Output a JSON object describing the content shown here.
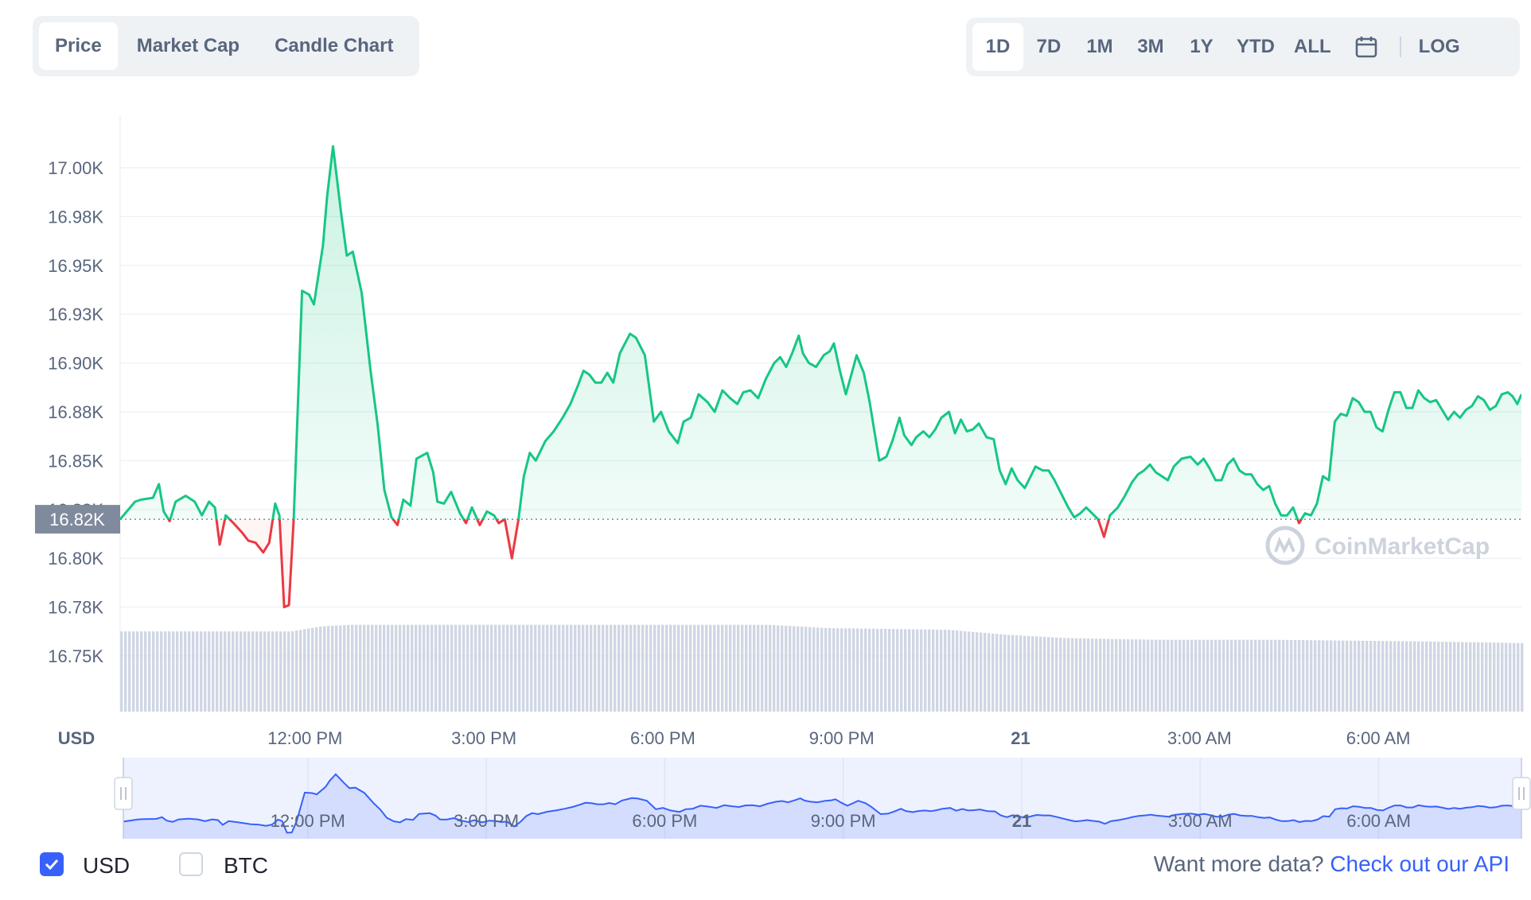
{
  "tabs": [
    {
      "label": "Price",
      "active": true
    },
    {
      "label": "Market Cap",
      "active": false
    },
    {
      "label": "Candle Chart",
      "active": false
    }
  ],
  "ranges": [
    {
      "label": "1D",
      "active": true
    },
    {
      "label": "7D",
      "active": false
    },
    {
      "label": "1M",
      "active": false
    },
    {
      "label": "3M",
      "active": false
    },
    {
      "label": "1Y",
      "active": false
    },
    {
      "label": "YTD",
      "active": false
    },
    {
      "label": "ALL",
      "active": false
    }
  ],
  "calendar_icon": "calendar-icon",
  "log_label": "LOG",
  "footer": {
    "usd_label": "USD",
    "usd_checked": true,
    "btc_label": "BTC",
    "btc_checked": false,
    "more_text": "Want more data?",
    "api_link": "Check out our API"
  },
  "colors": {
    "up": "#16c784",
    "down": "#ea3943",
    "accent": "#3861fb",
    "baseline_tag": "#808a9d"
  },
  "chart_data": {
    "type": "line",
    "currency_label": "USD",
    "y_ticks": [
      "17.00K",
      "16.98K",
      "16.95K",
      "16.93K",
      "16.90K",
      "16.88K",
      "16.85K",
      "16.83K",
      "16.80K",
      "16.78K",
      "16.75K"
    ],
    "ylim": [
      16.74,
      17.02
    ],
    "baseline": 16.82,
    "baseline_label": "16.82K",
    "x_ticks": [
      {
        "label": "12:00 PM",
        "hour": 11.75,
        "bold": false
      },
      {
        "label": "3:00 PM",
        "hour": 14.75,
        "bold": false
      },
      {
        "label": "6:00 PM",
        "hour": 17.75,
        "bold": false
      },
      {
        "label": "9:00 PM",
        "hour": 20.75,
        "bold": false
      },
      {
        "label": "21",
        "hour": 23.75,
        "bold": true
      },
      {
        "label": "3:00 AM",
        "hour": 26.75,
        "bold": false
      },
      {
        "label": "6:00 AM",
        "hour": 29.75,
        "bold": false
      }
    ],
    "x_range_hours": [
      8.65,
      32.15
    ],
    "series": [
      {
        "price": [
          [
            8.65,
            16.82
          ],
          [
            8.9,
            16.829
          ],
          [
            9.0,
            16.83
          ],
          [
            9.2,
            16.831
          ],
          [
            9.3,
            16.838
          ],
          [
            9.38,
            16.824
          ],
          [
            9.48,
            16.819
          ],
          [
            9.58,
            16.829
          ],
          [
            9.75,
            16.832
          ],
          [
            9.9,
            16.829
          ],
          [
            10.02,
            16.822
          ],
          [
            10.14,
            16.829
          ],
          [
            10.24,
            16.826
          ],
          [
            10.32,
            16.807
          ],
          [
            10.42,
            16.822
          ],
          [
            10.55,
            16.818
          ],
          [
            10.7,
            16.813
          ],
          [
            10.8,
            16.809
          ],
          [
            10.92,
            16.808
          ],
          [
            11.05,
            16.803
          ],
          [
            11.15,
            16.808
          ],
          [
            11.25,
            16.828
          ],
          [
            11.32,
            16.822
          ],
          [
            11.4,
            16.775
          ],
          [
            11.48,
            16.776
          ],
          [
            11.56,
            16.82
          ],
          [
            11.7,
            16.937
          ],
          [
            11.82,
            16.935
          ],
          [
            11.9,
            16.93
          ],
          [
            12.05,
            16.96
          ],
          [
            12.12,
            16.985
          ],
          [
            12.22,
            17.011
          ],
          [
            12.35,
            16.978
          ],
          [
            12.45,
            16.955
          ],
          [
            12.55,
            16.957
          ],
          [
            12.7,
            16.936
          ],
          [
            12.85,
            16.896
          ],
          [
            12.97,
            16.868
          ],
          [
            13.08,
            16.835
          ],
          [
            13.2,
            16.821
          ],
          [
            13.3,
            16.817
          ],
          [
            13.4,
            16.83
          ],
          [
            13.52,
            16.827
          ],
          [
            13.62,
            16.851
          ],
          [
            13.8,
            16.854
          ],
          [
            13.9,
            16.844
          ],
          [
            13.97,
            16.829
          ],
          [
            14.08,
            16.828
          ],
          [
            14.2,
            16.834
          ],
          [
            14.35,
            16.823
          ],
          [
            14.45,
            16.818
          ],
          [
            14.55,
            16.826
          ],
          [
            14.68,
            16.817
          ],
          [
            14.8,
            16.824
          ],
          [
            14.92,
            16.822
          ],
          [
            15.0,
            16.818
          ],
          [
            15.1,
            16.82
          ],
          [
            15.22,
            16.8
          ],
          [
            15.33,
            16.82
          ],
          [
            15.42,
            16.842
          ],
          [
            15.52,
            16.854
          ],
          [
            15.62,
            16.85
          ],
          [
            15.78,
            16.86
          ],
          [
            15.92,
            16.865
          ],
          [
            16.07,
            16.872
          ],
          [
            16.2,
            16.879
          ],
          [
            16.32,
            16.888
          ],
          [
            16.42,
            16.896
          ],
          [
            16.52,
            16.894
          ],
          [
            16.62,
            16.89
          ],
          [
            16.72,
            16.89
          ],
          [
            16.82,
            16.895
          ],
          [
            16.92,
            16.89
          ],
          [
            17.03,
            16.905
          ],
          [
            17.2,
            16.915
          ],
          [
            17.3,
            16.913
          ],
          [
            17.45,
            16.904
          ],
          [
            17.6,
            16.87
          ],
          [
            17.72,
            16.875
          ],
          [
            17.85,
            16.865
          ],
          [
            18.0,
            16.859
          ],
          [
            18.1,
            16.87
          ],
          [
            18.22,
            16.872
          ],
          [
            18.35,
            16.884
          ],
          [
            18.5,
            16.88
          ],
          [
            18.62,
            16.875
          ],
          [
            18.75,
            16.886
          ],
          [
            18.88,
            16.882
          ],
          [
            19.0,
            16.879
          ],
          [
            19.1,
            16.885
          ],
          [
            19.22,
            16.886
          ],
          [
            19.35,
            16.882
          ],
          [
            19.48,
            16.892
          ],
          [
            19.62,
            16.9
          ],
          [
            19.72,
            16.903
          ],
          [
            19.82,
            16.898
          ],
          [
            19.92,
            16.905
          ],
          [
            20.03,
            16.914
          ],
          [
            20.1,
            16.905
          ],
          [
            20.2,
            16.9
          ],
          [
            20.32,
            16.898
          ],
          [
            20.45,
            16.904
          ],
          [
            20.55,
            16.906
          ],
          [
            20.62,
            16.91
          ],
          [
            20.72,
            16.896
          ],
          [
            20.82,
            16.884
          ],
          [
            20.92,
            16.895
          ],
          [
            21.0,
            16.904
          ],
          [
            21.12,
            16.895
          ],
          [
            21.22,
            16.88
          ],
          [
            21.3,
            16.865
          ],
          [
            21.38,
            16.85
          ],
          [
            21.5,
            16.852
          ],
          [
            21.6,
            16.86
          ],
          [
            21.72,
            16.872
          ],
          [
            21.8,
            16.863
          ],
          [
            21.92,
            16.858
          ],
          [
            22.0,
            16.862
          ],
          [
            22.12,
            16.865
          ],
          [
            22.22,
            16.862
          ],
          [
            22.32,
            16.866
          ],
          [
            22.42,
            16.872
          ],
          [
            22.55,
            16.875
          ],
          [
            22.65,
            16.864
          ],
          [
            22.75,
            16.871
          ],
          [
            22.85,
            16.865
          ],
          [
            22.95,
            16.866
          ],
          [
            23.05,
            16.869
          ],
          [
            23.18,
            16.862
          ],
          [
            23.3,
            16.861
          ],
          [
            23.4,
            16.845
          ],
          [
            23.5,
            16.838
          ],
          [
            23.6,
            16.846
          ],
          [
            23.7,
            16.84
          ],
          [
            23.82,
            16.836
          ],
          [
            23.92,
            16.842
          ],
          [
            24.0,
            16.847
          ],
          [
            24.12,
            16.845
          ],
          [
            24.22,
            16.845
          ],
          [
            24.32,
            16.84
          ],
          [
            24.45,
            16.832
          ],
          [
            24.55,
            16.826
          ],
          [
            24.65,
            16.821
          ],
          [
            24.75,
            16.823
          ],
          [
            24.85,
            16.826
          ],
          [
            24.95,
            16.823
          ],
          [
            25.05,
            16.82
          ],
          [
            25.15,
            16.811
          ],
          [
            25.25,
            16.822
          ],
          [
            25.38,
            16.826
          ],
          [
            25.5,
            16.832
          ],
          [
            25.62,
            16.839
          ],
          [
            25.72,
            16.843
          ],
          [
            25.82,
            16.845
          ],
          [
            25.92,
            16.848
          ],
          [
            26.02,
            16.844
          ],
          [
            26.12,
            16.842
          ],
          [
            26.22,
            16.84
          ],
          [
            26.32,
            16.847
          ],
          [
            26.45,
            16.851
          ],
          [
            26.6,
            16.852
          ],
          [
            26.72,
            16.848
          ],
          [
            26.82,
            16.851
          ],
          [
            26.92,
            16.846
          ],
          [
            27.02,
            16.84
          ],
          [
            27.12,
            16.84
          ],
          [
            27.22,
            16.848
          ],
          [
            27.32,
            16.851
          ],
          [
            27.42,
            16.845
          ],
          [
            27.52,
            16.843
          ],
          [
            27.62,
            16.843
          ],
          [
            27.72,
            16.838
          ],
          [
            27.82,
            16.835
          ],
          [
            27.92,
            16.837
          ],
          [
            28.02,
            16.828
          ],
          [
            28.12,
            16.822
          ],
          [
            28.22,
            16.822
          ],
          [
            28.32,
            16.826
          ],
          [
            28.42,
            16.818
          ],
          [
            28.52,
            16.823
          ],
          [
            28.62,
            16.822
          ],
          [
            28.72,
            16.828
          ],
          [
            28.82,
            16.842
          ],
          [
            28.92,
            16.84
          ],
          [
            29.02,
            16.87
          ],
          [
            29.12,
            16.874
          ],
          [
            29.22,
            16.873
          ],
          [
            29.32,
            16.882
          ],
          [
            29.42,
            16.88
          ],
          [
            29.52,
            16.875
          ],
          [
            29.62,
            16.875
          ],
          [
            29.72,
            16.867
          ],
          [
            29.82,
            16.865
          ],
          [
            29.92,
            16.876
          ],
          [
            30.02,
            16.885
          ],
          [
            30.12,
            16.885
          ],
          [
            30.22,
            16.877
          ],
          [
            30.32,
            16.877
          ],
          [
            30.42,
            16.886
          ],
          [
            30.52,
            16.882
          ],
          [
            30.62,
            16.88
          ],
          [
            30.72,
            16.881
          ],
          [
            30.82,
            16.876
          ],
          [
            30.92,
            16.871
          ],
          [
            31.02,
            16.875
          ],
          [
            31.12,
            16.872
          ],
          [
            31.22,
            16.876
          ],
          [
            31.32,
            16.878
          ],
          [
            31.42,
            16.883
          ],
          [
            31.52,
            16.881
          ],
          [
            31.62,
            16.876
          ],
          [
            31.72,
            16.878
          ],
          [
            31.82,
            16.884
          ],
          [
            31.92,
            16.885
          ],
          [
            32.0,
            16.883
          ],
          [
            32.08,
            16.879
          ],
          [
            32.15,
            16.884
          ]
        ],
        "volume_level": [
          [
            8.65,
            0.48
          ],
          [
            11.5,
            0.48
          ],
          [
            12.0,
            0.51
          ],
          [
            12.5,
            0.52
          ],
          [
            14.0,
            0.52
          ],
          [
            16.0,
            0.52
          ],
          [
            18.0,
            0.52
          ],
          [
            19.5,
            0.52
          ],
          [
            20.5,
            0.5
          ],
          [
            22.5,
            0.49
          ],
          [
            23.5,
            0.46
          ],
          [
            24.5,
            0.44
          ],
          [
            26.0,
            0.43
          ],
          [
            28.0,
            0.43
          ],
          [
            30.5,
            0.42
          ],
          [
            32.15,
            0.41
          ]
        ]
      }
    ],
    "navigator_ticks": [
      "12:00 PM",
      "3:00 PM",
      "6:00 PM",
      "9:00 PM",
      "21",
      "3:00 AM",
      "6:00 AM"
    ],
    "watermark": "CoinMarketCap"
  }
}
